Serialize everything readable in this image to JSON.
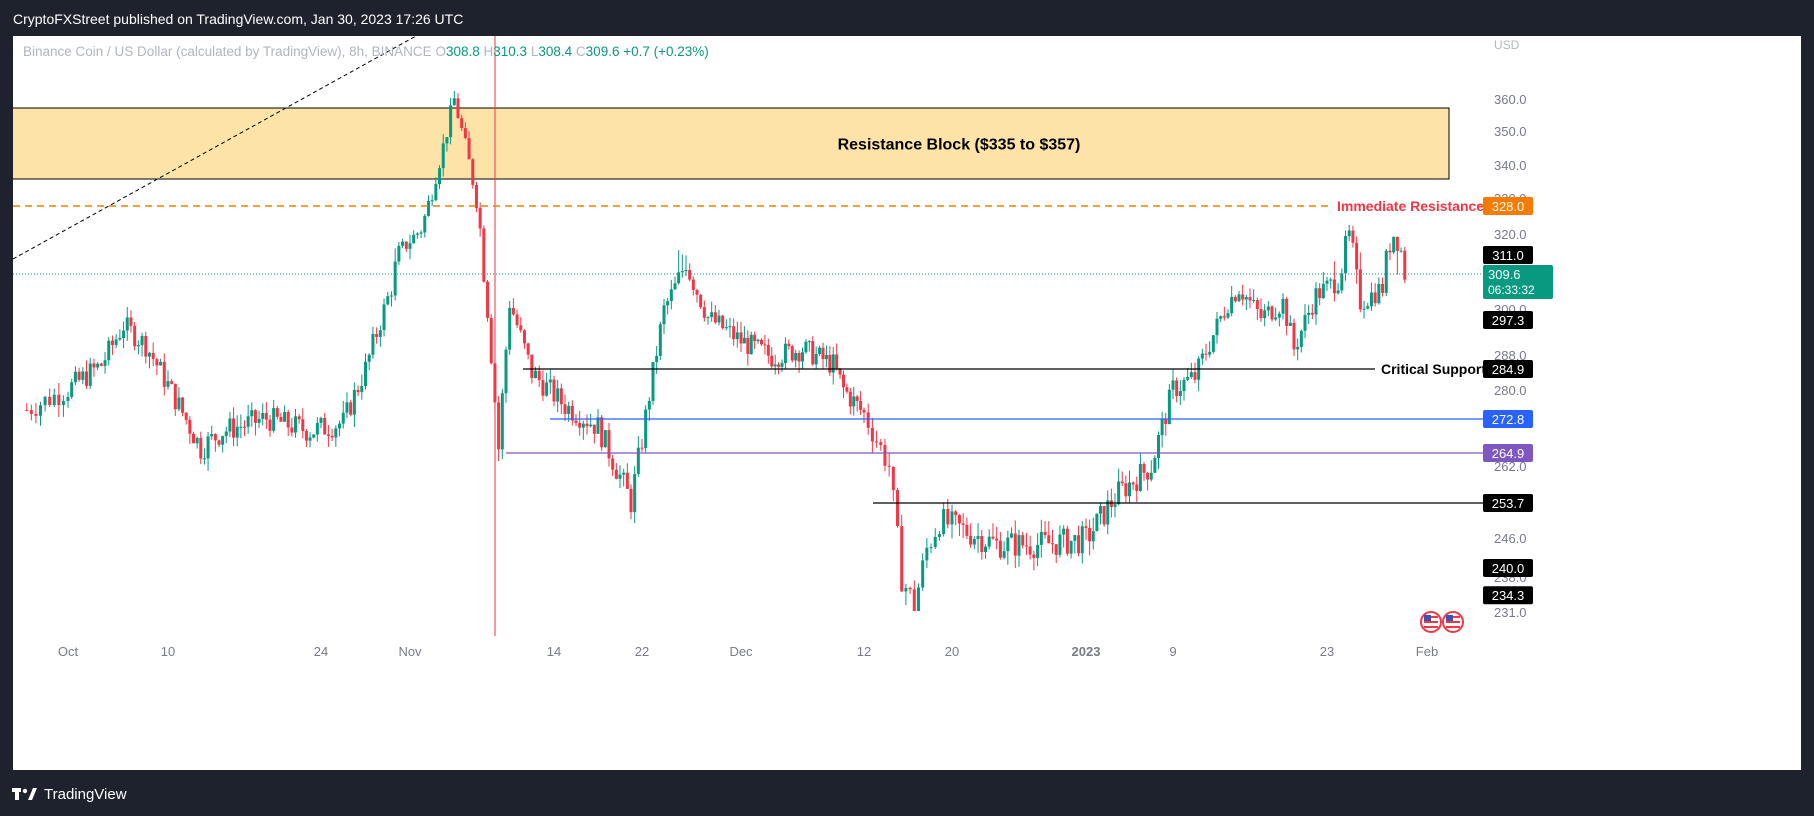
{
  "header": {
    "publisher_line": "CryptoFXStreet published on TradingView.com, Jan 30, 2023 17:26 UTC"
  },
  "symbol_info": {
    "title": "Binance Coin / US Dollar (calculated by TradingView), 8h, BINANCE",
    "o_label": "O",
    "o_value": "308.8",
    "h_label": "H",
    "h_value": "310.3",
    "l_label": "L",
    "l_value": "308.4",
    "c_label": "C",
    "c_value": "309.6",
    "change": "+0.7 (+0.23%)"
  },
  "footer": {
    "brand": "TradingView"
  },
  "colors": {
    "up": "#089981",
    "down": "#f23645",
    "resistance_zone": "#fde3a7",
    "orange": "#f57c00",
    "blue": "#2962ff",
    "purple": "#7e57c2",
    "black": "#000000"
  },
  "chart_data": {
    "type": "candlestick",
    "currency": "USD",
    "interval": "8h",
    "x_ticks": [
      "Oct",
      "10",
      "24",
      "Nov",
      "14",
      "22",
      "Dec",
      "12",
      "20",
      "2023",
      "9",
      "23",
      "Feb"
    ],
    "y_ticks": [
      "360.0",
      "350.0",
      "340.0",
      "330.0",
      "320.0",
      "300.0",
      "288.0",
      "280.0",
      "262.0",
      "246.0",
      "238.0",
      "231.0"
    ],
    "last_price": {
      "value": "309.6",
      "countdown": "06:33:32"
    },
    "zone": {
      "label": "Resistance Block ($335 to $357)",
      "low": 335,
      "high": 357
    },
    "levels": [
      {
        "value": 328.0,
        "label": "328.0",
        "style": "dashed",
        "color": "orange",
        "annotation": "Immediate Resistance"
      },
      {
        "value": 311.0,
        "label": "311.0",
        "style": "solid",
        "color": "red",
        "annotation": ""
      },
      {
        "value": 297.3,
        "label": "297.3",
        "style": "solid",
        "color": "red",
        "annotation": ""
      },
      {
        "value": 284.9,
        "label": "284.9",
        "style": "solid",
        "color": "black",
        "annotation": "Critical Support"
      },
      {
        "value": 272.8,
        "label": "272.8",
        "style": "solid",
        "color": "blue",
        "annotation": ""
      },
      {
        "value": 264.9,
        "label": "264.9",
        "style": "solid",
        "color": "purple",
        "annotation": ""
      },
      {
        "value": 253.7,
        "label": "253.7",
        "style": "solid",
        "color": "black",
        "annotation": ""
      },
      {
        "value": 240.0,
        "label": "240.0",
        "style": "solid",
        "color": "red",
        "annotation": ""
      },
      {
        "value": 234.3,
        "label": "234.3",
        "style": "solid",
        "color": "red",
        "annotation": ""
      }
    ],
    "price_path": [
      {
        "date": "Sep 28",
        "close": 275
      },
      {
        "date": "Oct 1",
        "close": 280
      },
      {
        "date": "Oct 4",
        "close": 286
      },
      {
        "date": "Oct 6",
        "close": 296
      },
      {
        "date": "Oct 8",
        "close": 291
      },
      {
        "date": "Oct 11",
        "close": 276
      },
      {
        "date": "Oct 13",
        "close": 266
      },
      {
        "date": "Oct 15",
        "close": 270
      },
      {
        "date": "Oct 19",
        "close": 273
      },
      {
        "date": "Oct 23",
        "close": 270
      },
      {
        "date": "Oct 26",
        "close": 272
      },
      {
        "date": "Oct 28",
        "close": 285
      },
      {
        "date": "Oct 31",
        "close": 312
      },
      {
        "date": "Nov 2",
        "close": 320
      },
      {
        "date": "Nov 4",
        "close": 345
      },
      {
        "date": "Nov 5",
        "close": 360
      },
      {
        "date": "Nov 6",
        "close": 345
      },
      {
        "date": "Nov 7",
        "close": 330
      },
      {
        "date": "Nov 8",
        "close": 300
      },
      {
        "date": "Nov 9",
        "close": 266
      },
      {
        "date": "Nov 10",
        "close": 302
      },
      {
        "date": "Nov 12",
        "close": 284
      },
      {
        "date": "Nov 15",
        "close": 276
      },
      {
        "date": "Nov 18",
        "close": 271
      },
      {
        "date": "Nov 21",
        "close": 254
      },
      {
        "date": "Nov 22",
        "close": 268
      },
      {
        "date": "Nov 24",
        "close": 300
      },
      {
        "date": "Nov 26",
        "close": 312
      },
      {
        "date": "Nov 28",
        "close": 298
      },
      {
        "date": "Dec 1",
        "close": 292
      },
      {
        "date": "Dec 4",
        "close": 288
      },
      {
        "date": "Dec 7",
        "close": 290
      },
      {
        "date": "Dec 10",
        "close": 286
      },
      {
        "date": "Dec 11",
        "close": 280
      },
      {
        "date": "Dec 13",
        "close": 274
      },
      {
        "date": "Dec 15",
        "close": 262
      },
      {
        "date": "Dec 16",
        "close": 238
      },
      {
        "date": "Dec 17",
        "close": 232
      },
      {
        "date": "Dec 18",
        "close": 244
      },
      {
        "date": "Dec 19",
        "close": 250
      },
      {
        "date": "Dec 21",
        "close": 248
      },
      {
        "date": "Dec 24",
        "close": 245
      },
      {
        "date": "Dec 28",
        "close": 245
      },
      {
        "date": "Jan 1",
        "close": 246
      },
      {
        "date": "Jan 4",
        "close": 256
      },
      {
        "date": "Jan 7",
        "close": 262
      },
      {
        "date": "Jan 9",
        "close": 280
      },
      {
        "date": "Jan 11",
        "close": 283
      },
      {
        "date": "Jan 14",
        "close": 302
      },
      {
        "date": "Jan 15",
        "close": 306
      },
      {
        "date": "Jan 17",
        "close": 298
      },
      {
        "date": "Jan 19",
        "close": 302
      },
      {
        "date": "Jan 20",
        "close": 290
      },
      {
        "date": "Jan 22",
        "close": 304
      },
      {
        "date": "Jan 24",
        "close": 308
      },
      {
        "date": "Jan 25",
        "close": 318
      },
      {
        "date": "Jan 26",
        "close": 302
      },
      {
        "date": "Jan 28",
        "close": 306
      },
      {
        "date": "Jan 29",
        "close": 318
      },
      {
        "date": "Jan 30",
        "close": 309.6
      }
    ]
  }
}
